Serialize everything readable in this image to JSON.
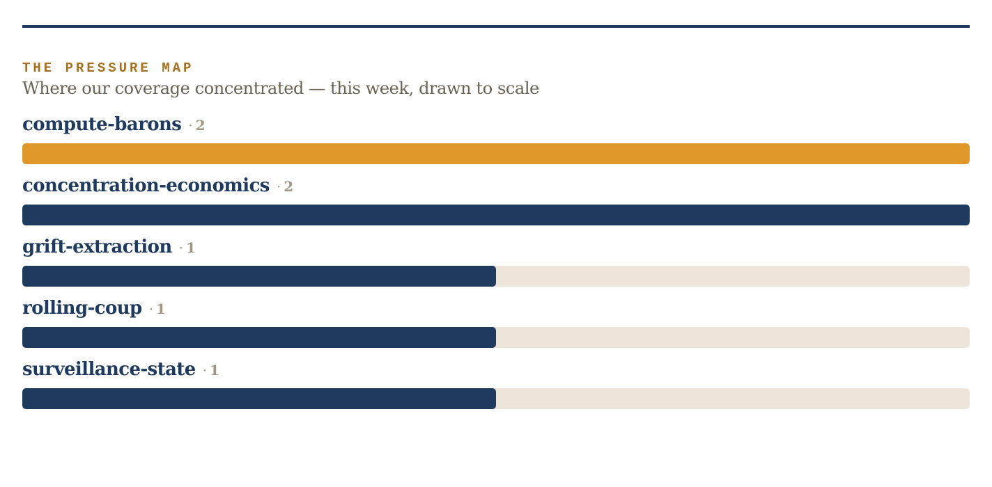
{
  "header": {
    "kicker": "THE PRESSURE MAP",
    "subtitle": "Where our coverage concentrated — this week, drawn to scale"
  },
  "chart_data": {
    "type": "bar",
    "orientation": "horizontal",
    "title": "THE PRESSURE MAP",
    "subtitle": "Where our coverage concentrated — this week, drawn to scale",
    "categories": [
      "compute-barons",
      "concentration-economics",
      "grift-extraction",
      "rolling-coup",
      "surveillance-state"
    ],
    "values": [
      2,
      2,
      1,
      1,
      1
    ],
    "xlim": [
      0,
      2
    ],
    "separator": "·",
    "highlight_index": 0,
    "grid": false
  },
  "colors": {
    "rule": "#1f3a5f",
    "kicker": "#a66f1d",
    "bar": "#1f3a5f",
    "highlight_bar": "#e0982b",
    "track": "#ede5da"
  }
}
